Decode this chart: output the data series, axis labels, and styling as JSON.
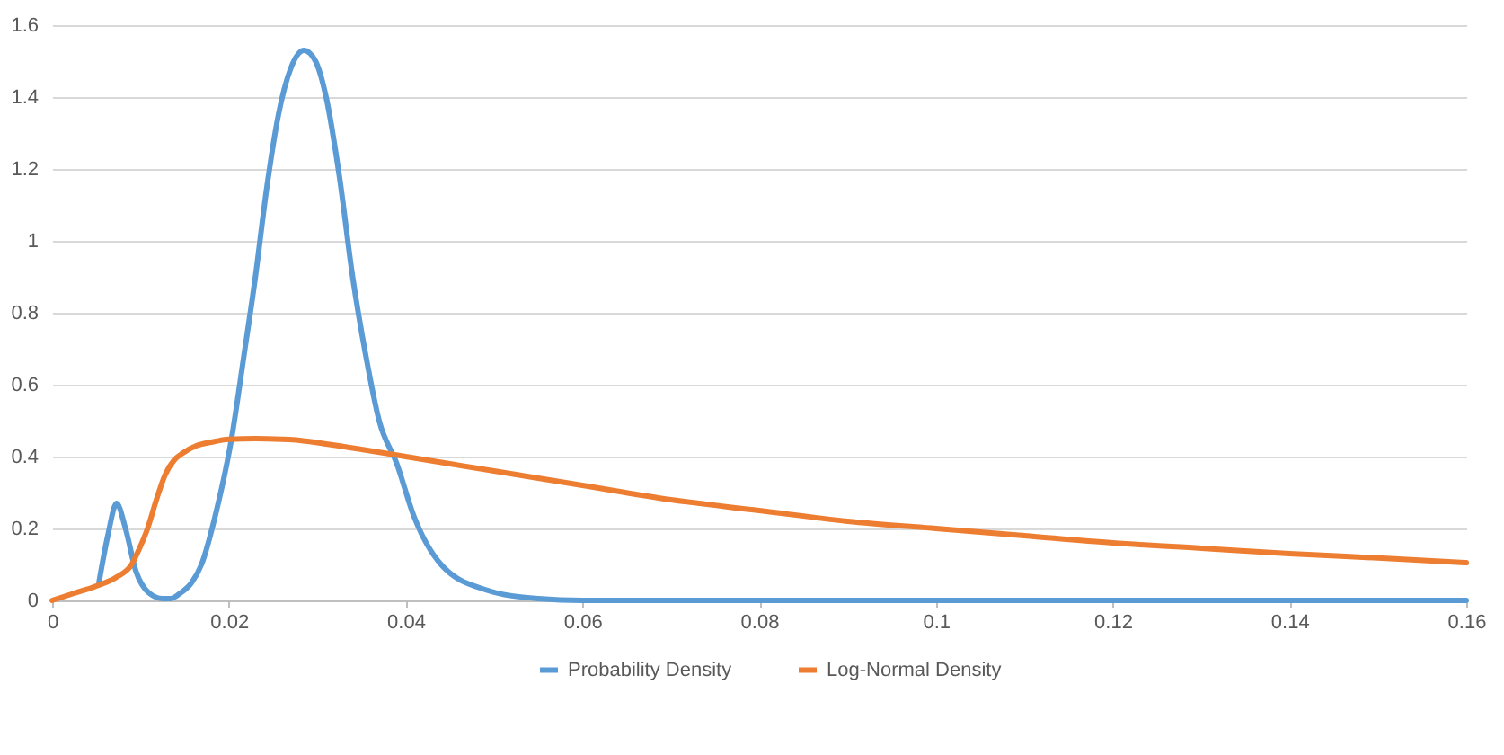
{
  "chart_data": {
    "type": "line",
    "legend": "bottom",
    "grid": "y",
    "marker": "none",
    "xlim": [
      0,
      0.16
    ],
    "xticks": [
      0,
      0.02,
      0.04,
      0.06,
      0.08,
      0.1,
      0.12,
      0.14,
      0.16
    ],
    "ylim": [
      0,
      1.6
    ],
    "yticks": [
      0,
      0.2,
      0.4,
      0.6,
      0.8,
      1,
      1.2,
      1.4,
      1.6
    ],
    "series": [
      {
        "name": "Probability Density",
        "color": "#5b9bd5",
        "x": [
          0.0053,
          0.0063,
          0.0073,
          0.0083,
          0.0095,
          0.011,
          0.0125,
          0.0134,
          0.0145,
          0.0158,
          0.0169,
          0.0186,
          0.0203,
          0.0217,
          0.023,
          0.0243,
          0.0256,
          0.027,
          0.0285,
          0.0298,
          0.031,
          0.0325,
          0.034,
          0.0355,
          0.037,
          0.039,
          0.041,
          0.044,
          0.049,
          0.055,
          0.06,
          0.08,
          0.1,
          0.12,
          0.14,
          0.16
        ],
        "values": [
          0.05,
          0.18,
          0.27,
          0.2,
          0.08,
          0.02,
          0.005,
          0.005,
          0.02,
          0.05,
          0.1,
          0.25,
          0.45,
          0.68,
          0.9,
          1.15,
          1.35,
          1.48,
          1.53,
          1.5,
          1.4,
          1.18,
          0.9,
          0.68,
          0.5,
          0.38,
          0.23,
          0.1,
          0.03,
          0.005,
          0,
          0,
          0,
          0,
          0,
          0
        ]
      },
      {
        "name": "Log-Normal Density",
        "color": "#ed7d31",
        "x": [
          0,
          0.0025,
          0.005,
          0.0073,
          0.009,
          0.0098,
          0.0108,
          0.0118,
          0.0128,
          0.0138,
          0.0148,
          0.0163,
          0.018,
          0.02,
          0.023,
          0.026,
          0.028,
          0.031,
          0.035,
          0.04,
          0.05,
          0.06,
          0.07,
          0.08,
          0.09,
          0.1,
          0.11,
          0.12,
          0.13,
          0.14,
          0.15,
          0.16
        ],
        "values": [
          0,
          0.02,
          0.04,
          0.065,
          0.1,
          0.14,
          0.2,
          0.28,
          0.35,
          0.39,
          0.41,
          0.43,
          0.44,
          0.448,
          0.45,
          0.448,
          0.445,
          0.435,
          0.42,
          0.4,
          0.36,
          0.32,
          0.28,
          0.25,
          0.22,
          0.2,
          0.18,
          0.16,
          0.145,
          0.13,
          0.118,
          0.105
        ]
      }
    ]
  }
}
